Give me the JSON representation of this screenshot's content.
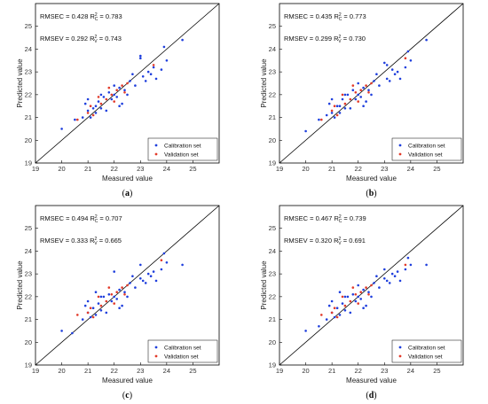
{
  "colors": {
    "calibration": "#1f3fdd",
    "validation": "#e23a2a",
    "line": "#000000"
  },
  "chart_data": [
    {
      "panel": "(a)",
      "panel_letter": "a",
      "type": "scatter",
      "xlabel": "Measured value",
      "ylabel": "Predicted value",
      "xlim": [
        19,
        26
      ],
      "ylim": [
        19,
        26
      ],
      "xticks": [
        19,
        20,
        21,
        22,
        23,
        24,
        25
      ],
      "yticks": [
        19,
        20,
        21,
        22,
        23,
        24,
        25
      ],
      "stats": {
        "rmsec": "RMSEC = 0.428",
        "r2c": "0.783",
        "rmsev": "RMSEV = 0.292",
        "r2v": "0.743"
      },
      "legend": [
        "Calibration set",
        "Validation set"
      ],
      "series": [
        {
          "name": "Calibration set",
          "points": [
            [
              20.0,
              20.5
            ],
            [
              20.5,
              20.9
            ],
            [
              20.8,
              21.0
            ],
            [
              21.0,
              21.3
            ],
            [
              21.1,
              21.0
            ],
            [
              21.2,
              21.4
            ],
            [
              21.3,
              21.2
            ],
            [
              21.4,
              21.7
            ],
            [
              21.5,
              21.4
            ],
            [
              21.6,
              21.9
            ],
            [
              21.7,
              21.3
            ],
            [
              21.8,
              22.1
            ],
            [
              21.9,
              21.8
            ],
            [
              22.0,
              22.4
            ],
            [
              22.1,
              21.9
            ],
            [
              22.2,
              22.3
            ],
            [
              22.3,
              21.6
            ],
            [
              22.4,
              22.2
            ],
            [
              22.5,
              22.0
            ],
            [
              22.6,
              22.6
            ],
            [
              22.8,
              22.4
            ],
            [
              23.0,
              23.7
            ],
            [
              23.0,
              23.6
            ],
            [
              23.1,
              22.8
            ],
            [
              23.2,
              22.6
            ],
            [
              23.3,
              23.0
            ],
            [
              23.5,
              23.2
            ],
            [
              23.6,
              22.7
            ],
            [
              23.8,
              23.1
            ],
            [
              23.9,
              24.1
            ],
            [
              24.0,
              23.5
            ],
            [
              24.6,
              24.4
            ],
            [
              21.0,
              21.8
            ],
            [
              21.3,
              21.5
            ],
            [
              22.0,
              22.0
            ],
            [
              22.7,
              22.9
            ],
            [
              20.9,
              21.6
            ],
            [
              21.5,
              22.0
            ],
            [
              22.2,
              21.5
            ],
            [
              23.4,
              22.9
            ]
          ]
        },
        {
          "name": "Validation set",
          "points": [
            [
              20.6,
              20.9
            ],
            [
              21.0,
              21.2
            ],
            [
              21.2,
              21.1
            ],
            [
              21.5,
              21.6
            ],
            [
              21.7,
              21.8
            ],
            [
              21.9,
              22.0
            ],
            [
              22.0,
              21.7
            ],
            [
              22.1,
              22.2
            ],
            [
              22.3,
              22.4
            ],
            [
              21.8,
              22.3
            ],
            [
              21.4,
              21.9
            ],
            [
              22.5,
              22.5
            ],
            [
              23.5,
              23.3
            ],
            [
              21.1,
              21.5
            ],
            [
              22.4,
              22.1
            ]
          ]
        }
      ]
    },
    {
      "panel": "(b)",
      "panel_letter": "b",
      "type": "scatter",
      "xlabel": "Measured value",
      "ylabel": "Predicted value",
      "xlim": [
        19,
        26
      ],
      "ylim": [
        19,
        26
      ],
      "xticks": [
        19,
        20,
        21,
        22,
        23,
        24,
        25
      ],
      "yticks": [
        19,
        20,
        21,
        22,
        23,
        24,
        25
      ],
      "stats": {
        "rmsec": "RMSEC = 0.435",
        "r2c": "0.773",
        "rmsev": "RMSEV = 0.299",
        "r2v": "0.730"
      },
      "legend": [
        "Calibration set",
        "Validation set"
      ],
      "series": [
        {
          "name": "Calibration set",
          "points": [
            [
              20.0,
              20.4
            ],
            [
              20.5,
              20.9
            ],
            [
              20.8,
              21.1
            ],
            [
              21.0,
              21.2
            ],
            [
              21.1,
              21.0
            ],
            [
              21.2,
              21.5
            ],
            [
              21.3,
              21.2
            ],
            [
              21.4,
              21.8
            ],
            [
              21.5,
              21.4
            ],
            [
              21.6,
              22.0
            ],
            [
              21.7,
              21.4
            ],
            [
              21.8,
              22.2
            ],
            [
              21.9,
              21.8
            ],
            [
              22.0,
              22.5
            ],
            [
              22.1,
              21.9
            ],
            [
              22.2,
              22.3
            ],
            [
              22.3,
              21.7
            ],
            [
              22.4,
              22.2
            ],
            [
              22.5,
              22.0
            ],
            [
              22.6,
              22.6
            ],
            [
              22.8,
              22.4
            ],
            [
              23.0,
              23.4
            ],
            [
              23.1,
              23.3
            ],
            [
              23.1,
              22.7
            ],
            [
              23.2,
              22.6
            ],
            [
              23.3,
              23.1
            ],
            [
              23.5,
              23.0
            ],
            [
              23.6,
              22.7
            ],
            [
              23.8,
              23.2
            ],
            [
              23.9,
              23.9
            ],
            [
              24.0,
              23.5
            ],
            [
              24.6,
              24.4
            ],
            [
              21.0,
              21.8
            ],
            [
              21.3,
              21.5
            ],
            [
              22.0,
              22.0
            ],
            [
              22.7,
              22.9
            ],
            [
              20.9,
              21.6
            ],
            [
              21.5,
              22.0
            ],
            [
              22.2,
              21.5
            ],
            [
              23.4,
              22.9
            ]
          ]
        },
        {
          "name": "Validation set",
          "points": [
            [
              20.6,
              20.9
            ],
            [
              21.0,
              21.3
            ],
            [
              21.2,
              21.1
            ],
            [
              21.5,
              21.6
            ],
            [
              21.7,
              21.8
            ],
            [
              21.9,
              22.1
            ],
            [
              22.0,
              21.7
            ],
            [
              22.1,
              22.2
            ],
            [
              22.3,
              22.4
            ],
            [
              21.8,
              22.4
            ],
            [
              21.4,
              22.0
            ],
            [
              22.5,
              22.5
            ],
            [
              23.8,
              23.6
            ],
            [
              21.1,
              21.5
            ],
            [
              22.4,
              22.1
            ]
          ]
        }
      ]
    },
    {
      "panel": "(c)",
      "panel_letter": "c",
      "type": "scatter",
      "xlabel": "Measured value",
      "ylabel": "Predicted value",
      "xlim": [
        19,
        26
      ],
      "ylim": [
        19,
        26
      ],
      "xticks": [
        19,
        20,
        21,
        22,
        23,
        24,
        25
      ],
      "yticks": [
        19,
        20,
        21,
        22,
        23,
        24,
        25
      ],
      "stats": {
        "rmsec": "RMSEC = 0.494",
        "r2c": "0.707",
        "rmsev": "RMSEV = 0.333",
        "r2v": "0.665"
      },
      "legend": [
        "Calibration set",
        "Validation set"
      ],
      "series": [
        {
          "name": "Calibration set",
          "points": [
            [
              20.0,
              20.5
            ],
            [
              20.4,
              20.4
            ],
            [
              20.8,
              21.0
            ],
            [
              21.0,
              21.3
            ],
            [
              21.1,
              21.1
            ],
            [
              21.2,
              21.5
            ],
            [
              21.3,
              21.2
            ],
            [
              21.4,
              21.7
            ],
            [
              21.5,
              21.4
            ],
            [
              21.6,
              22.0
            ],
            [
              21.7,
              21.3
            ],
            [
              21.8,
              22.1
            ],
            [
              21.9,
              21.8
            ],
            [
              22.0,
              23.1
            ],
            [
              22.1,
              21.9
            ],
            [
              22.2,
              22.3
            ],
            [
              22.3,
              21.6
            ],
            [
              22.4,
              22.2
            ],
            [
              22.5,
              22.0
            ],
            [
              22.6,
              22.6
            ],
            [
              22.8,
              22.4
            ],
            [
              23.0,
              23.4
            ],
            [
              23.0,
              22.8
            ],
            [
              23.1,
              22.7
            ],
            [
              23.2,
              22.6
            ],
            [
              23.3,
              23.0
            ],
            [
              23.5,
              23.1
            ],
            [
              23.6,
              22.7
            ],
            [
              23.8,
              23.2
            ],
            [
              23.9,
              23.9
            ],
            [
              24.0,
              23.5
            ],
            [
              24.6,
              23.4
            ],
            [
              21.0,
              21.8
            ],
            [
              21.3,
              22.2
            ],
            [
              22.0,
              22.0
            ],
            [
              22.7,
              22.9
            ],
            [
              20.9,
              21.6
            ],
            [
              21.5,
              22.0
            ],
            [
              22.2,
              21.5
            ],
            [
              23.4,
              22.9
            ]
          ]
        },
        {
          "name": "Validation set",
          "points": [
            [
              20.6,
              21.2
            ],
            [
              21.0,
              21.3
            ],
            [
              21.2,
              21.1
            ],
            [
              21.5,
              21.6
            ],
            [
              21.7,
              21.8
            ],
            [
              21.9,
              22.1
            ],
            [
              22.0,
              21.7
            ],
            [
              22.1,
              22.2
            ],
            [
              22.3,
              22.4
            ],
            [
              21.8,
              22.4
            ],
            [
              21.4,
              22.0
            ],
            [
              22.5,
              22.5
            ],
            [
              23.8,
              23.6
            ],
            [
              21.1,
              21.5
            ],
            [
              22.4,
              22.1
            ]
          ]
        }
      ]
    },
    {
      "panel": "(d)",
      "panel_letter": "d",
      "type": "scatter",
      "xlabel": "Measured value",
      "ylabel": "Predicted value",
      "xlim": [
        19,
        26
      ],
      "ylim": [
        19,
        26
      ],
      "xticks": [
        19,
        20,
        21,
        22,
        23,
        24,
        25
      ],
      "yticks": [
        19,
        20,
        21,
        22,
        23,
        24,
        25
      ],
      "stats": {
        "rmsec": "RMSEC = 0.467",
        "r2c": "0.739",
        "rmsev": "RMSEV = 0.320",
        "r2v": "0.691"
      },
      "legend": [
        "Calibration set",
        "Validation set"
      ],
      "series": [
        {
          "name": "Calibration set",
          "points": [
            [
              20.0,
              20.5
            ],
            [
              20.5,
              20.7
            ],
            [
              20.8,
              21.0
            ],
            [
              21.0,
              21.3
            ],
            [
              21.1,
              21.1
            ],
            [
              21.2,
              21.5
            ],
            [
              21.3,
              21.2
            ],
            [
              21.4,
              21.7
            ],
            [
              21.5,
              21.4
            ],
            [
              21.6,
              22.0
            ],
            [
              21.7,
              21.3
            ],
            [
              21.8,
              22.1
            ],
            [
              21.9,
              21.8
            ],
            [
              22.0,
              22.5
            ],
            [
              22.1,
              21.9
            ],
            [
              22.2,
              22.3
            ],
            [
              22.3,
              21.6
            ],
            [
              22.4,
              22.2
            ],
            [
              22.5,
              22.0
            ],
            [
              22.6,
              22.6
            ],
            [
              22.8,
              22.4
            ],
            [
              23.0,
              23.2
            ],
            [
              23.0,
              22.8
            ],
            [
              23.1,
              22.7
            ],
            [
              23.2,
              22.6
            ],
            [
              23.3,
              23.0
            ],
            [
              23.5,
              23.1
            ],
            [
              23.6,
              22.7
            ],
            [
              23.8,
              23.2
            ],
            [
              23.9,
              23.7
            ],
            [
              24.0,
              23.4
            ],
            [
              24.6,
              23.4
            ],
            [
              21.0,
              21.8
            ],
            [
              21.3,
              22.2
            ],
            [
              22.0,
              22.0
            ],
            [
              22.7,
              22.9
            ],
            [
              20.9,
              21.6
            ],
            [
              21.5,
              22.0
            ],
            [
              22.2,
              21.5
            ],
            [
              23.4,
              22.9
            ]
          ]
        },
        {
          "name": "Validation set",
          "points": [
            [
              20.6,
              21.2
            ],
            [
              21.0,
              21.3
            ],
            [
              21.2,
              21.1
            ],
            [
              21.5,
              21.6
            ],
            [
              21.7,
              21.8
            ],
            [
              21.9,
              22.1
            ],
            [
              22.0,
              21.7
            ],
            [
              22.1,
              22.2
            ],
            [
              22.3,
              22.4
            ],
            [
              21.8,
              22.4
            ],
            [
              21.4,
              22.0
            ],
            [
              22.5,
              22.5
            ],
            [
              23.8,
              23.4
            ],
            [
              21.1,
              21.5
            ],
            [
              22.4,
              22.1
            ]
          ]
        }
      ]
    }
  ]
}
